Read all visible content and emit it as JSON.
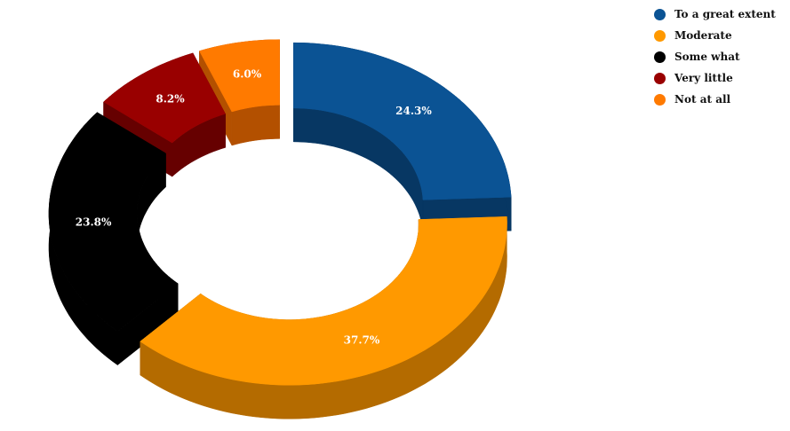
{
  "chart_data": {
    "type": "pie",
    "style": "3d-exploded-donut",
    "title": "",
    "legend_position": "top-right",
    "series": [
      {
        "name": "To a great extent",
        "value": 24.3,
        "label": "24.3%",
        "color": "#0b5394",
        "side_color": "#073763"
      },
      {
        "name": "Moderate",
        "value": 37.7,
        "label": "37.7%",
        "color": "#ff9900",
        "side_color": "#b46b00"
      },
      {
        "name": "Some what",
        "value": 23.8,
        "label": "23.8%",
        "color": "#000000",
        "side_color": "#000000"
      },
      {
        "name": "Very little",
        "value": 8.2,
        "label": "8.2%",
        "color": "#990000",
        "side_color": "#660000"
      },
      {
        "name": "Not at all",
        "value": 6.0,
        "label": "6.0%",
        "color": "#ff7a00",
        "side_color": "#b35000"
      }
    ]
  }
}
